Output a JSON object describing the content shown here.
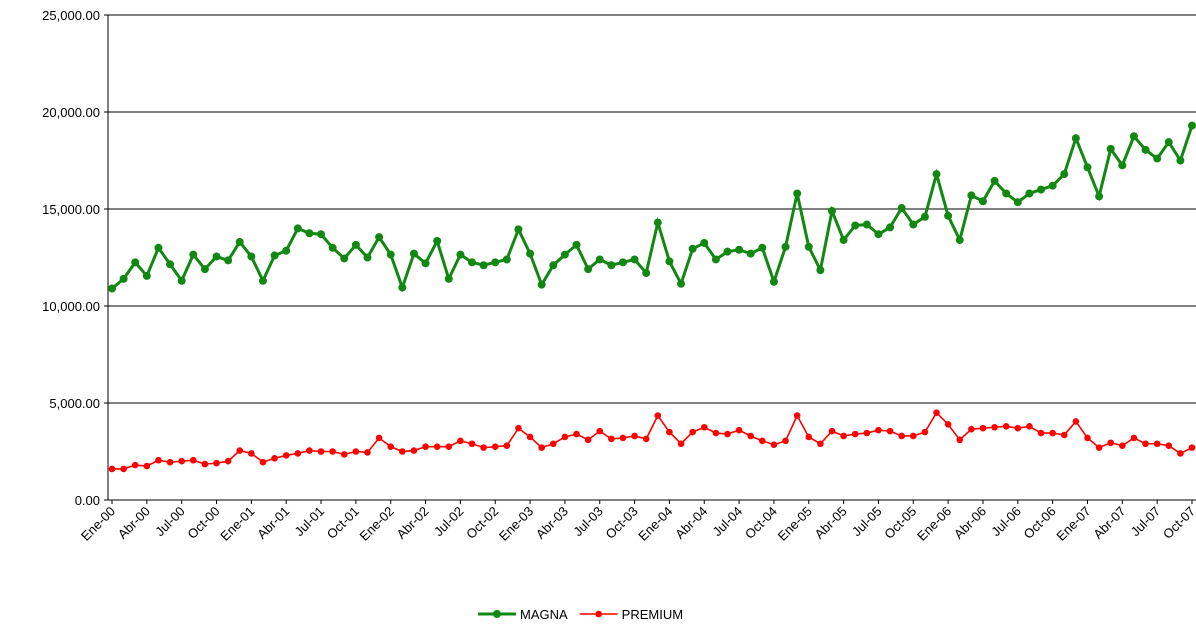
{
  "chart_data": {
    "type": "line",
    "categories": [
      "Ene-00",
      null,
      null,
      "Abr-00",
      null,
      null,
      "Jul-00",
      null,
      null,
      "Oct-00",
      null,
      null,
      "Ene-01",
      null,
      null,
      "Abr-01",
      null,
      null,
      "Jul-01",
      null,
      null,
      "Oct-01",
      null,
      null,
      "Ene-02",
      null,
      null,
      "Abr-02",
      null,
      null,
      "Jul-02",
      null,
      null,
      "Oct-02",
      null,
      null,
      "Ene-03",
      null,
      null,
      "Abr-03",
      null,
      null,
      "Jul-03",
      null,
      null,
      "Oct-03",
      null,
      null,
      "Ene-04",
      null,
      null,
      "Abr-04",
      null,
      null,
      "Jul-04",
      null,
      null,
      "Oct-04",
      null,
      null,
      "Ene-05",
      null,
      null,
      "Abr-05",
      null,
      null,
      "Jul-05",
      null,
      null,
      "Oct-05",
      null,
      null,
      "Ene-06",
      null,
      null,
      "Abr-06",
      null,
      null,
      "Jul-06",
      null,
      null,
      "Oct-06",
      null,
      null,
      "Ene-07",
      null,
      null,
      "Abr-07",
      null,
      null,
      "Jul-07",
      null,
      null,
      "Oct-07"
    ],
    "series": [
      {
        "name": "MAGNA",
        "color": "#118811",
        "values": [
          10900,
          11400,
          12250,
          11550,
          13000,
          12150,
          11300,
          12650,
          11900,
          12550,
          12350,
          13300,
          12550,
          11300,
          12600,
          12850,
          14000,
          13750,
          13700,
          13000,
          12450,
          13150,
          12500,
          13550,
          12650,
          10950,
          12700,
          12200,
          13350,
          11400,
          12650,
          12250,
          12100,
          12250,
          12400,
          13950,
          12700,
          11100,
          12100,
          12650,
          13150,
          11900,
          12400,
          12100,
          12250,
          12400,
          11700,
          14300,
          12300,
          11150,
          12950,
          13250,
          12400,
          12800,
          12900,
          12700,
          13000,
          11250,
          13050,
          15800,
          13050,
          11850,
          14900,
          13400,
          14150,
          14200,
          13700,
          14050,
          15050,
          14200,
          14600,
          16800,
          14650,
          13400,
          15700,
          15400,
          16450,
          15800,
          15350,
          15800,
          16000,
          16200,
          16800,
          18650,
          17150,
          15650,
          18100,
          17250,
          18750,
          18050,
          17600,
          18450,
          17500,
          19300
        ]
      },
      {
        "name": "PREMIUM",
        "color": "#ff0000",
        "values": [
          1600,
          1600,
          1800,
          1750,
          2050,
          1950,
          2000,
          2050,
          1850,
          1900,
          2000,
          2550,
          2400,
          1950,
          2150,
          2300,
          2400,
          2550,
          2500,
          2500,
          2350,
          2500,
          2450,
          3200,
          2750,
          2500,
          2550,
          2750,
          2750,
          2750,
          3050,
          2900,
          2700,
          2750,
          2800,
          3700,
          3250,
          2700,
          2900,
          3250,
          3400,
          3100,
          3550,
          3150,
          3200,
          3300,
          3150,
          4350,
          3500,
          2900,
          3500,
          3750,
          3450,
          3400,
          3600,
          3300,
          3050,
          2850,
          3050,
          4350,
          3250,
          2900,
          3550,
          3300,
          3400,
          3450,
          3600,
          3550,
          3300,
          3300,
          3500,
          4500,
          3900,
          3100,
          3650,
          3700,
          3750,
          3800,
          3700,
          3800,
          3450,
          3450,
          3350,
          4050,
          3200,
          2700,
          2950,
          2800,
          3200,
          2900,
          2900,
          2800,
          2400,
          2700
        ]
      }
    ],
    "ylim": [
      0,
      25000
    ],
    "yticks": [
      {
        "value": 0,
        "label": "0.00"
      },
      {
        "value": 5000,
        "label": "5,000.00"
      },
      {
        "value": 10000,
        "label": "10,000.00"
      },
      {
        "value": 15000,
        "label": "15,000.00"
      },
      {
        "value": 20000,
        "label": "20,000.00"
      },
      {
        "value": 25000,
        "label": "25,000.00"
      }
    ],
    "grid": true,
    "legend": "bottom"
  }
}
